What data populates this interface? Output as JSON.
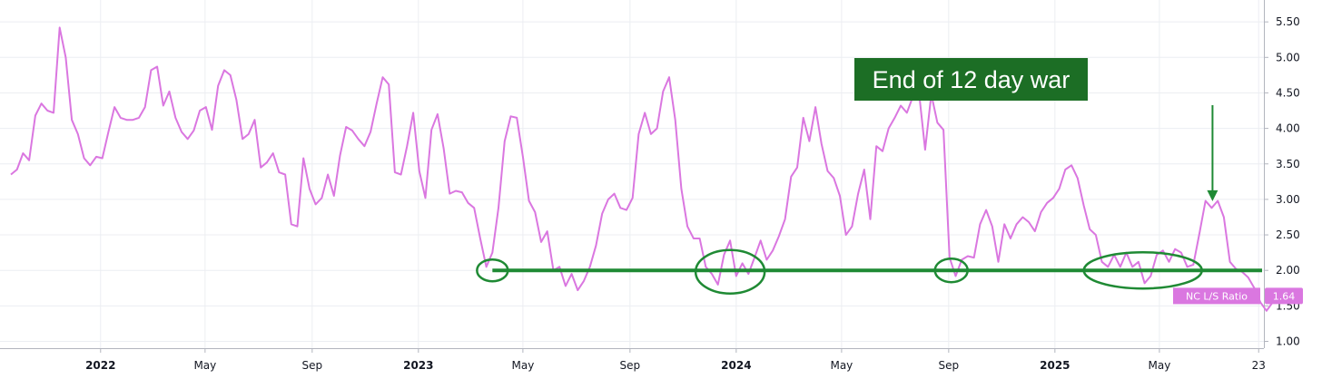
{
  "chart_data": {
    "type": "line",
    "title": "",
    "xlabel": "",
    "ylabel": "",
    "grid": true,
    "y_axis_side": "right",
    "ylim": [
      0.9,
      5.75
    ],
    "y_ticks": [
      "1.00",
      "1.50",
      "2.00",
      "2.50",
      "3.00",
      "3.50",
      "4.00",
      "4.50",
      "5.00",
      "5.50"
    ],
    "x_range": [
      "2021-09-20",
      "2025-08-29"
    ],
    "x_ticks": [
      {
        "date": "2022-01-01",
        "label": "2022",
        "major": true
      },
      {
        "date": "2022-05-01",
        "label": "May",
        "major": false
      },
      {
        "date": "2022-09-01",
        "label": "Sep",
        "major": false
      },
      {
        "date": "2023-01-01",
        "label": "2023",
        "major": true
      },
      {
        "date": "2023-05-01",
        "label": "May",
        "major": false
      },
      {
        "date": "2023-09-01",
        "label": "Sep",
        "major": false
      },
      {
        "date": "2024-01-01",
        "label": "2024",
        "major": true
      },
      {
        "date": "2024-05-01",
        "label": "May",
        "major": false
      },
      {
        "date": "2024-09-01",
        "label": "Sep",
        "major": false
      },
      {
        "date": "2025-01-01",
        "label": "2025",
        "major": true
      },
      {
        "date": "2025-05-01",
        "label": "May",
        "major": false
      },
      {
        "date": "2025-08-23",
        "label": "23",
        "major": false
      }
    ],
    "series": [
      {
        "name": "NC L/S Ratio",
        "color": "#da77e0",
        "last_value": "1.64",
        "points": [
          [
            "2021-09-20",
            3.35
          ],
          [
            "2021-09-27",
            3.42
          ],
          [
            "2021-10-04",
            3.65
          ],
          [
            "2021-10-11",
            3.55
          ],
          [
            "2021-10-18",
            4.18
          ],
          [
            "2021-10-25",
            4.35
          ],
          [
            "2021-11-01",
            4.25
          ],
          [
            "2021-11-08",
            4.22
          ],
          [
            "2021-11-15",
            5.42
          ],
          [
            "2021-11-22",
            5.0
          ],
          [
            "2021-11-29",
            4.12
          ],
          [
            "2021-12-06",
            3.92
          ],
          [
            "2021-12-13",
            3.58
          ],
          [
            "2021-12-20",
            3.48
          ],
          [
            "2021-12-27",
            3.6
          ],
          [
            "2022-01-03",
            3.58
          ],
          [
            "2022-01-10",
            3.95
          ],
          [
            "2022-01-17",
            4.3
          ],
          [
            "2022-01-24",
            4.15
          ],
          [
            "2022-01-31",
            4.12
          ],
          [
            "2022-02-07",
            4.12
          ],
          [
            "2022-02-14",
            4.15
          ],
          [
            "2022-02-21",
            4.3
          ],
          [
            "2022-02-28",
            4.82
          ],
          [
            "2022-03-07",
            4.87
          ],
          [
            "2022-03-14",
            4.32
          ],
          [
            "2022-03-21",
            4.52
          ],
          [
            "2022-03-28",
            4.15
          ],
          [
            "2022-04-04",
            3.95
          ],
          [
            "2022-04-11",
            3.85
          ],
          [
            "2022-04-18",
            3.97
          ],
          [
            "2022-04-25",
            4.25
          ],
          [
            "2022-05-02",
            4.3
          ],
          [
            "2022-05-09",
            3.98
          ],
          [
            "2022-05-16",
            4.6
          ],
          [
            "2022-05-23",
            4.82
          ],
          [
            "2022-05-30",
            4.75
          ],
          [
            "2022-06-06",
            4.4
          ],
          [
            "2022-06-13",
            3.85
          ],
          [
            "2022-06-20",
            3.92
          ],
          [
            "2022-06-27",
            4.12
          ],
          [
            "2022-07-04",
            3.45
          ],
          [
            "2022-07-11",
            3.52
          ],
          [
            "2022-07-18",
            3.65
          ],
          [
            "2022-07-25",
            3.38
          ],
          [
            "2022-08-01",
            3.35
          ],
          [
            "2022-08-08",
            2.65
          ],
          [
            "2022-08-15",
            2.62
          ],
          [
            "2022-08-22",
            3.58
          ],
          [
            "2022-08-29",
            3.15
          ],
          [
            "2022-09-05",
            2.93
          ],
          [
            "2022-09-12",
            3.02
          ],
          [
            "2022-09-19",
            3.35
          ],
          [
            "2022-09-26",
            3.05
          ],
          [
            "2022-10-03",
            3.62
          ],
          [
            "2022-10-10",
            4.02
          ],
          [
            "2022-10-17",
            3.97
          ],
          [
            "2022-10-24",
            3.85
          ],
          [
            "2022-10-31",
            3.75
          ],
          [
            "2022-11-07",
            3.95
          ],
          [
            "2022-11-14",
            4.35
          ],
          [
            "2022-11-21",
            4.72
          ],
          [
            "2022-11-28",
            4.62
          ],
          [
            "2022-12-05",
            3.38
          ],
          [
            "2022-12-12",
            3.35
          ],
          [
            "2022-12-19",
            3.75
          ],
          [
            "2022-12-26",
            4.22
          ],
          [
            "2023-01-02",
            3.4
          ],
          [
            "2023-01-09",
            3.02
          ],
          [
            "2023-01-16",
            3.98
          ],
          [
            "2023-01-23",
            4.2
          ],
          [
            "2023-01-30",
            3.72
          ],
          [
            "2023-02-06",
            3.08
          ],
          [
            "2023-02-13",
            3.12
          ],
          [
            "2023-02-20",
            3.1
          ],
          [
            "2023-02-27",
            2.95
          ],
          [
            "2023-03-06",
            2.88
          ],
          [
            "2023-03-13",
            2.45
          ],
          [
            "2023-03-20",
            2.05
          ],
          [
            "2023-03-27",
            2.25
          ],
          [
            "2023-04-03",
            2.88
          ],
          [
            "2023-04-10",
            3.82
          ],
          [
            "2023-04-17",
            4.17
          ],
          [
            "2023-04-24",
            4.15
          ],
          [
            "2023-05-01",
            3.6
          ],
          [
            "2023-05-08",
            2.98
          ],
          [
            "2023-05-15",
            2.82
          ],
          [
            "2023-05-22",
            2.4
          ],
          [
            "2023-05-29",
            2.55
          ],
          [
            "2023-06-05",
            2.0
          ],
          [
            "2023-06-12",
            2.05
          ],
          [
            "2023-06-19",
            1.78
          ],
          [
            "2023-06-26",
            1.95
          ],
          [
            "2023-07-03",
            1.72
          ],
          [
            "2023-07-10",
            1.85
          ],
          [
            "2023-07-17",
            2.05
          ],
          [
            "2023-07-24",
            2.35
          ],
          [
            "2023-07-31",
            2.8
          ],
          [
            "2023-08-07",
            3.0
          ],
          [
            "2023-08-14",
            3.08
          ],
          [
            "2023-08-21",
            2.88
          ],
          [
            "2023-08-28",
            2.85
          ],
          [
            "2023-09-04",
            3.02
          ],
          [
            "2023-09-11",
            3.92
          ],
          [
            "2023-09-18",
            4.22
          ],
          [
            "2023-09-25",
            3.92
          ],
          [
            "2023-10-02",
            4.0
          ],
          [
            "2023-10-09",
            4.52
          ],
          [
            "2023-10-16",
            4.72
          ],
          [
            "2023-10-23",
            4.12
          ],
          [
            "2023-10-30",
            3.15
          ],
          [
            "2023-11-06",
            2.62
          ],
          [
            "2023-11-13",
            2.45
          ],
          [
            "2023-11-20",
            2.45
          ],
          [
            "2023-11-27",
            2.05
          ],
          [
            "2023-12-04",
            1.95
          ],
          [
            "2023-12-11",
            1.8
          ],
          [
            "2023-12-18",
            2.22
          ],
          [
            "2023-12-25",
            2.42
          ],
          [
            "2024-01-01",
            1.92
          ],
          [
            "2024-01-08",
            2.1
          ],
          [
            "2024-01-15",
            1.95
          ],
          [
            "2024-01-22",
            2.18
          ],
          [
            "2024-01-29",
            2.42
          ],
          [
            "2024-02-05",
            2.15
          ],
          [
            "2024-02-12",
            2.28
          ],
          [
            "2024-02-19",
            2.48
          ],
          [
            "2024-02-26",
            2.72
          ],
          [
            "2024-03-04",
            3.32
          ],
          [
            "2024-03-11",
            3.45
          ],
          [
            "2024-03-18",
            4.15
          ],
          [
            "2024-03-25",
            3.82
          ],
          [
            "2024-04-01",
            4.3
          ],
          [
            "2024-04-08",
            3.78
          ],
          [
            "2024-04-15",
            3.4
          ],
          [
            "2024-04-22",
            3.3
          ],
          [
            "2024-04-29",
            3.05
          ],
          [
            "2024-05-06",
            2.5
          ],
          [
            "2024-05-13",
            2.62
          ],
          [
            "2024-05-20",
            3.08
          ],
          [
            "2024-05-27",
            3.42
          ],
          [
            "2024-06-03",
            2.72
          ],
          [
            "2024-06-10",
            3.75
          ],
          [
            "2024-06-17",
            3.68
          ],
          [
            "2024-06-24",
            4.0
          ],
          [
            "2024-07-01",
            4.15
          ],
          [
            "2024-07-08",
            4.32
          ],
          [
            "2024-07-15",
            4.22
          ],
          [
            "2024-07-22",
            4.45
          ],
          [
            "2024-07-29",
            4.5
          ],
          [
            "2024-08-05",
            3.7
          ],
          [
            "2024-08-12",
            4.48
          ],
          [
            "2024-08-19",
            4.08
          ],
          [
            "2024-08-26",
            3.98
          ],
          [
            "2024-09-02",
            2.18
          ],
          [
            "2024-09-09",
            1.92
          ],
          [
            "2024-09-16",
            2.15
          ],
          [
            "2024-09-23",
            2.2
          ],
          [
            "2024-09-30",
            2.18
          ],
          [
            "2024-10-07",
            2.65
          ],
          [
            "2024-10-14",
            2.85
          ],
          [
            "2024-10-21",
            2.62
          ],
          [
            "2024-10-28",
            2.12
          ],
          [
            "2024-11-04",
            2.65
          ],
          [
            "2024-11-11",
            2.45
          ],
          [
            "2024-11-18",
            2.65
          ],
          [
            "2024-11-25",
            2.75
          ],
          [
            "2024-12-02",
            2.68
          ],
          [
            "2024-12-09",
            2.55
          ],
          [
            "2024-12-16",
            2.82
          ],
          [
            "2024-12-23",
            2.95
          ],
          [
            "2024-12-30",
            3.02
          ],
          [
            "2025-01-06",
            3.15
          ],
          [
            "2025-01-13",
            3.42
          ],
          [
            "2025-01-20",
            3.48
          ],
          [
            "2025-01-27",
            3.3
          ],
          [
            "2025-02-03",
            2.92
          ],
          [
            "2025-02-10",
            2.58
          ],
          [
            "2025-02-17",
            2.5
          ],
          [
            "2025-02-24",
            2.12
          ],
          [
            "2025-03-03",
            2.05
          ],
          [
            "2025-03-10",
            2.22
          ],
          [
            "2025-03-17",
            2.05
          ],
          [
            "2025-03-24",
            2.25
          ],
          [
            "2025-03-31",
            2.05
          ],
          [
            "2025-04-07",
            2.12
          ],
          [
            "2025-04-14",
            1.82
          ],
          [
            "2025-04-21",
            1.92
          ],
          [
            "2025-04-28",
            2.22
          ],
          [
            "2025-05-05",
            2.28
          ],
          [
            "2025-05-12",
            2.12
          ],
          [
            "2025-05-19",
            2.3
          ],
          [
            "2025-05-26",
            2.25
          ],
          [
            "2025-06-02",
            2.05
          ],
          [
            "2025-06-09",
            2.08
          ],
          [
            "2025-06-16",
            2.52
          ],
          [
            "2025-06-23",
            2.98
          ],
          [
            "2025-06-30",
            2.88
          ],
          [
            "2025-07-07",
            2.98
          ],
          [
            "2025-07-14",
            2.75
          ],
          [
            "2025-07-21",
            2.12
          ],
          [
            "2025-07-28",
            2.02
          ],
          [
            "2025-08-04",
            1.98
          ],
          [
            "2025-08-11",
            1.9
          ],
          [
            "2025-08-18",
            1.75
          ],
          [
            "2025-08-25",
            1.55
          ],
          [
            "2025-09-01",
            1.43
          ],
          [
            "2025-09-08",
            1.55
          ],
          [
            "2025-09-15",
            1.64
          ]
        ]
      }
    ],
    "support_line": {
      "value": 2.0,
      "color": "#1f8a34",
      "from": "2023-03-27",
      "to": "2025-11-15"
    },
    "circles": [
      {
        "date": "2023-03-27",
        "value": 2.0
      },
      {
        "date": "2023-12-25",
        "value": 1.98
      },
      {
        "date": "2024-09-04",
        "value": 2.0
      },
      {
        "date": "2025-04-12",
        "value": 2.0
      }
    ],
    "annotation": {
      "text": "End of 12 day war",
      "box_color": "#1c6e25",
      "arrow_color": "#1f8a34",
      "target_date": "2025-07-01",
      "target_value": 2.95
    }
  }
}
